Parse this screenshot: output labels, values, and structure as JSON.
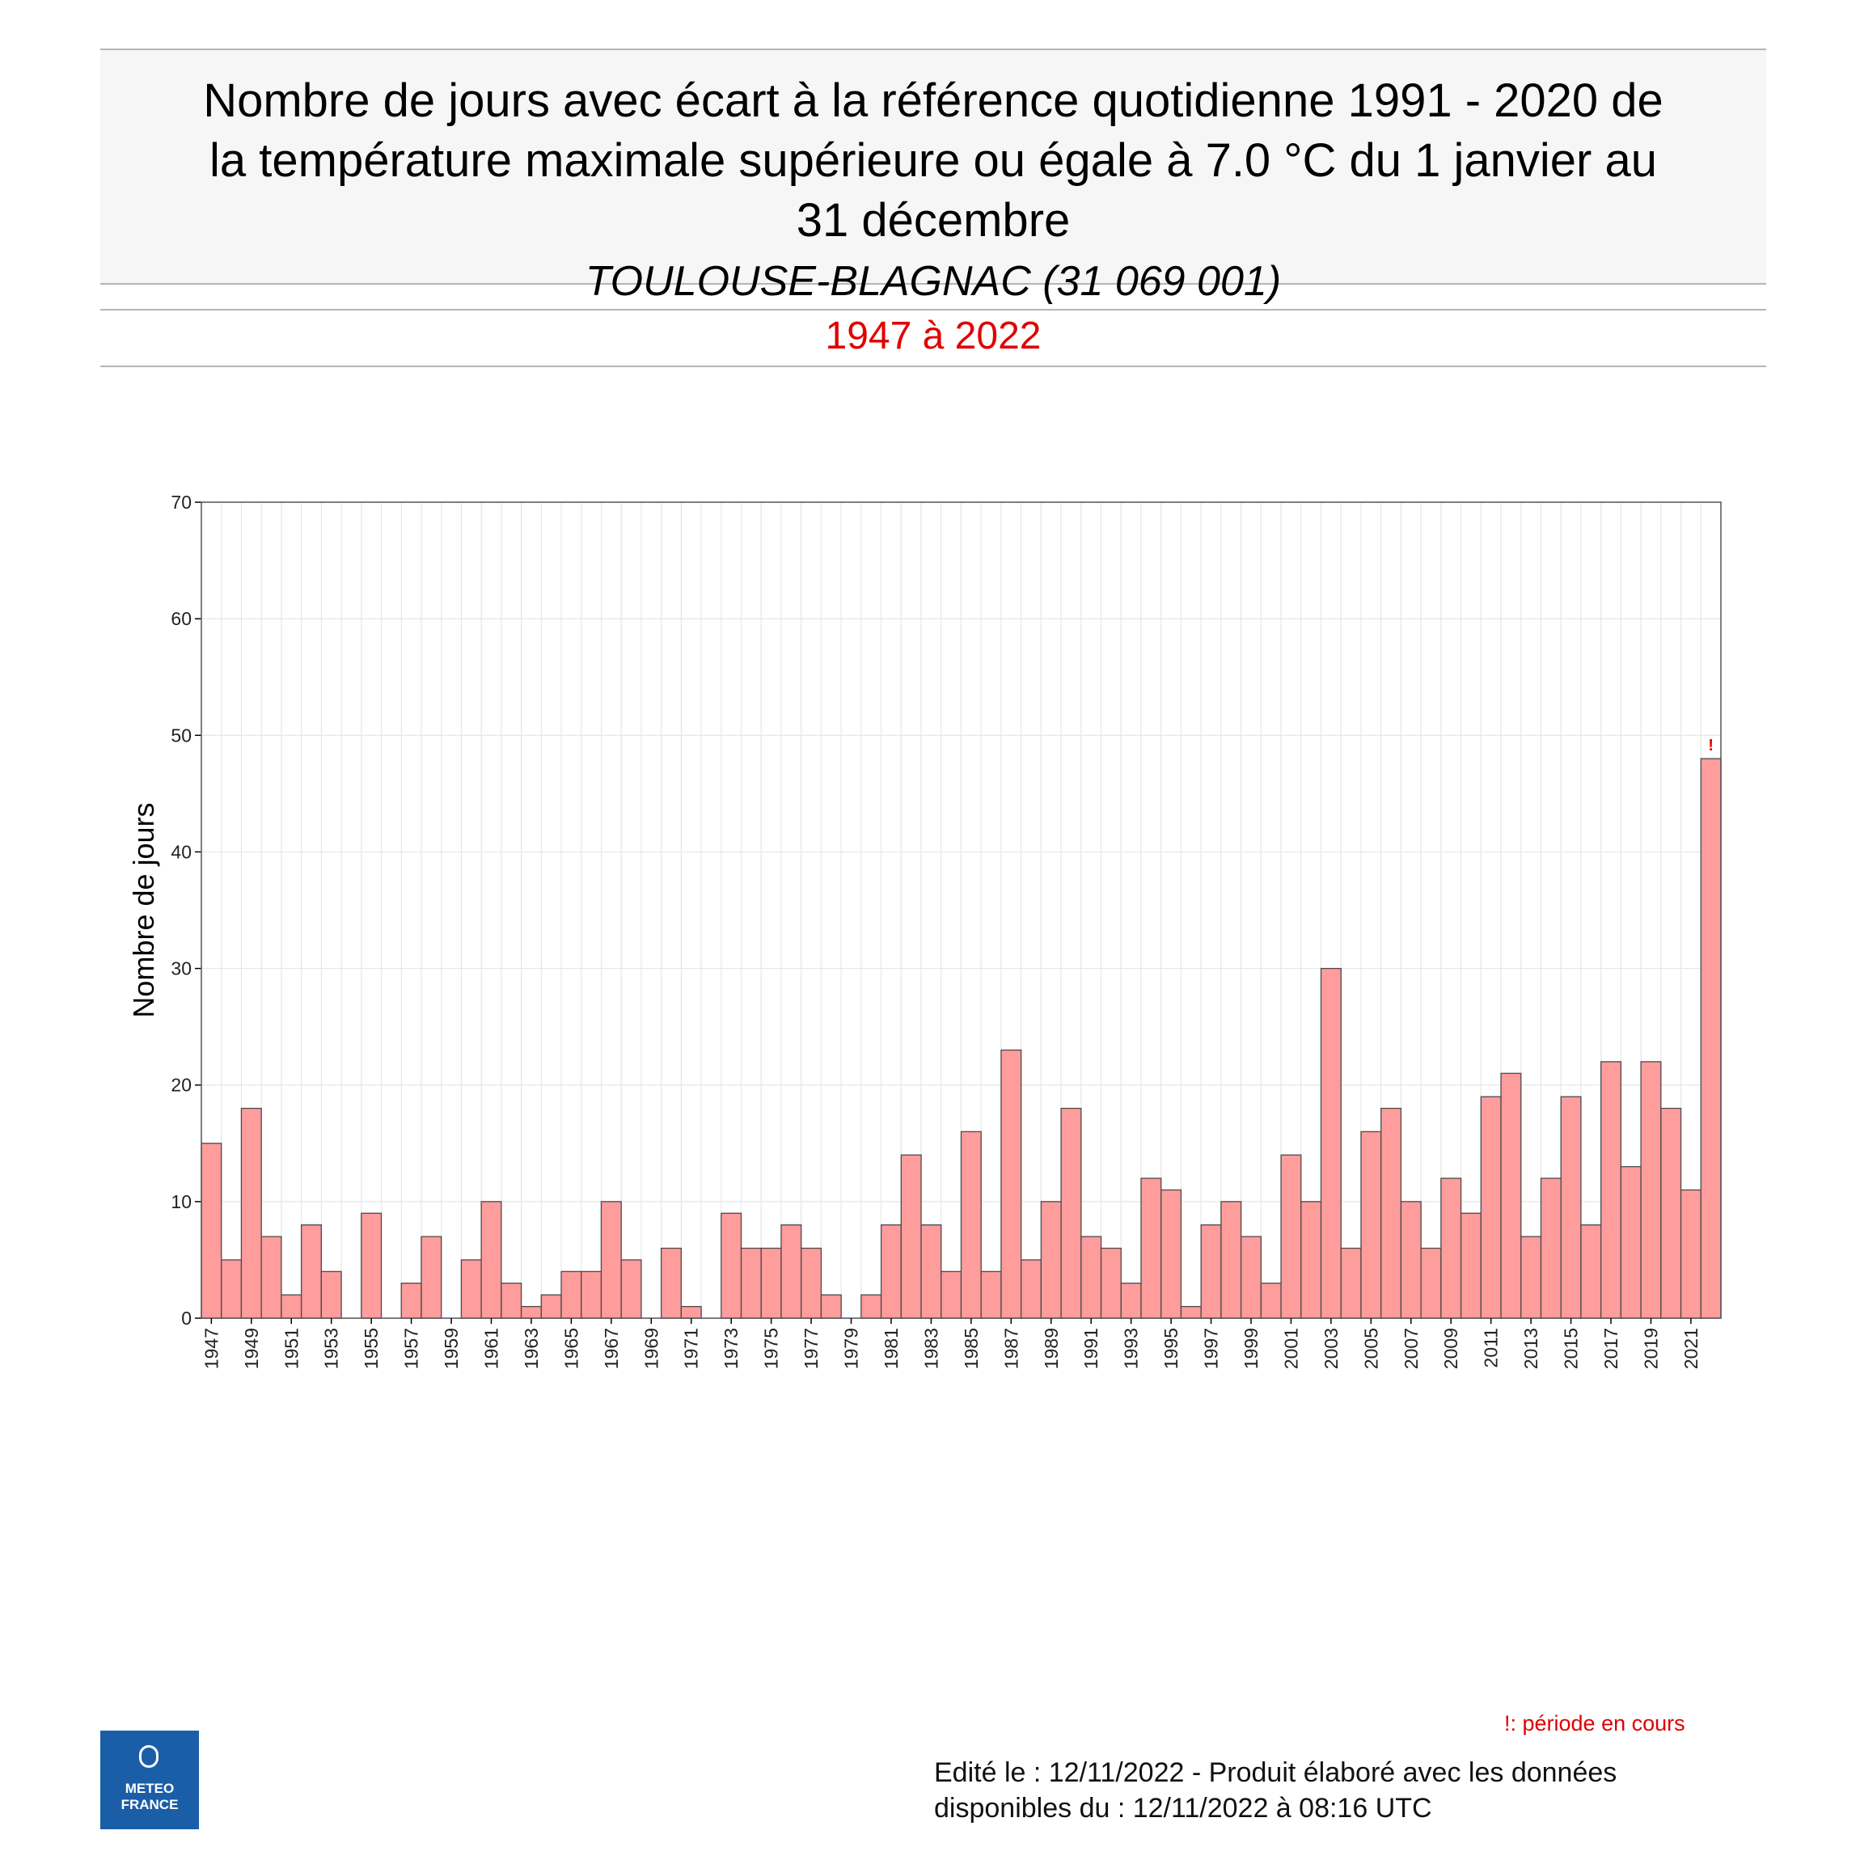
{
  "header": {
    "title_lines": [
      "Nombre de jours avec écart à la référence quotidienne 1991 - 2020 de",
      "la température maximale supérieure ou égale à  7.0 °C du 1 janvier au",
      "31 décembre"
    ],
    "station": "TOULOUSE-BLAGNAC (31 069 001)",
    "period": "1947 à 2022"
  },
  "footer": {
    "note": "!: période en cours",
    "edit_line1": "Edité le : 12/11/2022 - Produit élaboré avec les données",
    "edit_line2": "disponibles du : 12/11/2022 à 08:16 UTC",
    "logo_line1": "METEO",
    "logo_line2": "FRANCE"
  },
  "chart_data": {
    "type": "bar",
    "ylabel": "Nombre de jours",
    "ylim": [
      0,
      70
    ],
    "yticks": [
      0,
      10,
      20,
      30,
      40,
      50,
      60,
      70
    ],
    "categories": [
      "1947",
      "1948",
      "1949",
      "1950",
      "1951",
      "1952",
      "1953",
      "1954",
      "1955",
      "1956",
      "1957",
      "1958",
      "1959",
      "1960",
      "1961",
      "1962",
      "1963",
      "1964",
      "1965",
      "1966",
      "1967",
      "1968",
      "1969",
      "1970",
      "1971",
      "1972",
      "1973",
      "1974",
      "1975",
      "1976",
      "1977",
      "1978",
      "1979",
      "1980",
      "1981",
      "1982",
      "1983",
      "1984",
      "1985",
      "1986",
      "1987",
      "1988",
      "1989",
      "1990",
      "1991",
      "1992",
      "1993",
      "1994",
      "1995",
      "1996",
      "1997",
      "1998",
      "1999",
      "2000",
      "2001",
      "2002",
      "2003",
      "2004",
      "2005",
      "2006",
      "2007",
      "2008",
      "2009",
      "2010",
      "2011",
      "2012",
      "2013",
      "2014",
      "2015",
      "2016",
      "2017",
      "2018",
      "2019",
      "2020",
      "2021",
      "2022"
    ],
    "values": [
      15,
      5,
      18,
      7,
      2,
      8,
      4,
      0,
      9,
      0,
      3,
      7,
      0,
      5,
      10,
      3,
      1,
      2,
      4,
      4,
      10,
      5,
      0,
      6,
      1,
      0,
      9,
      6,
      6,
      8,
      6,
      2,
      0,
      2,
      8,
      14,
      8,
      4,
      16,
      4,
      23,
      5,
      10,
      18,
      7,
      6,
      3,
      12,
      11,
      1,
      8,
      10,
      7,
      3,
      14,
      10,
      30,
      6,
      16,
      18,
      10,
      6,
      12,
      9,
      19,
      21,
      7,
      12,
      19,
      8,
      22,
      13,
      22,
      18,
      11,
      48
    ],
    "tick_labels_shown": [
      "1947",
      "1949",
      "1951",
      "1953",
      "1955",
      "1957",
      "1959",
      "1961",
      "1963",
      "1965",
      "1967",
      "1969",
      "1971",
      "1973",
      "1975",
      "1977",
      "1979",
      "1981",
      "1983",
      "1985",
      "1987",
      "1989",
      "1991",
      "1993",
      "1995",
      "1997",
      "1999",
      "2001",
      "2003",
      "2005",
      "2007",
      "2009",
      "2011",
      "2013",
      "2015",
      "2017",
      "2019",
      "2021"
    ],
    "in_progress_year": "2022",
    "in_progress_marker": "!",
    "bar_color": "#ff9c9c",
    "grid": true
  }
}
